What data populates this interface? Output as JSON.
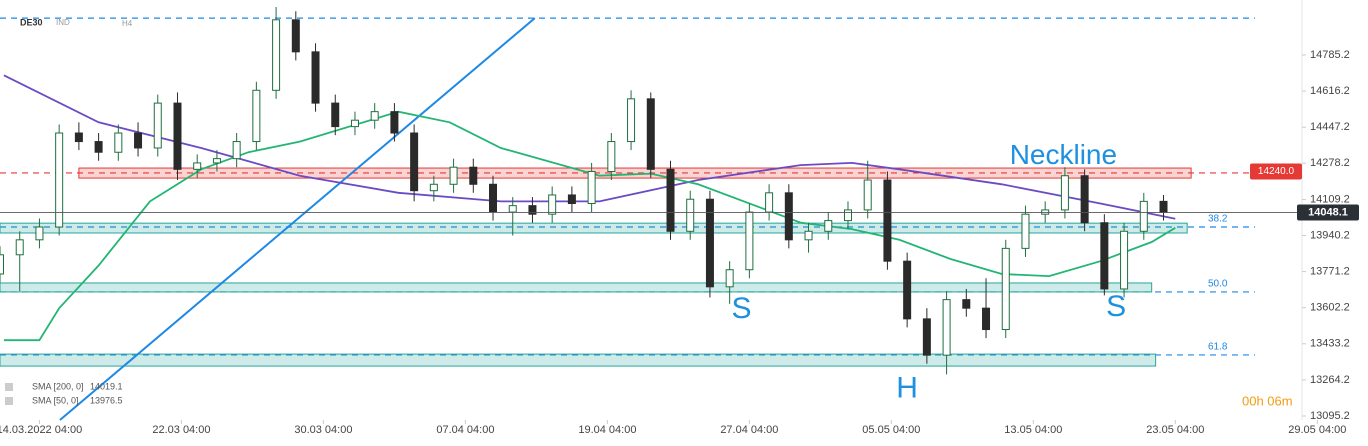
{
  "chart_data": {
    "type": "candlestick",
    "symbol": "DE30",
    "market": "IND",
    "timeframe": "H4",
    "countdown": "00h 06m",
    "xlim": [
      0,
      340
    ],
    "ylim": [
      13076.5,
      15042.7
    ],
    "yticks": [
      13095.2,
      13264.2,
      13433.2,
      13602.2,
      13771.2,
      13940.2,
      14109.2,
      14278.2,
      14447.2,
      14616.2,
      14785.2
    ],
    "xticks": [
      {
        "value": 10,
        "label": "14.03.2022 04:00"
      },
      {
        "value": 46,
        "label": "22.03 04:00"
      },
      {
        "value": 82,
        "label": "30.03 04:00"
      },
      {
        "value": 118,
        "label": "07.04 04:00"
      },
      {
        "value": 154,
        "label": "19.04 04:00"
      },
      {
        "value": 190,
        "label": "27.04 04:00"
      },
      {
        "value": 226,
        "label": "05.05 04:00"
      },
      {
        "value": 262,
        "label": "13.05 04:00"
      },
      {
        "value": 298,
        "label": "23.05 04:00"
      },
      {
        "value": 334,
        "label": "29.05 04:00"
      }
    ],
    "candles": {
      "up_color": "#1f6f3f",
      "down_color": "#2a2a2a",
      "x": [
        0,
        5,
        10,
        15,
        20,
        25,
        30,
        35,
        40,
        45,
        50,
        55,
        60,
        65,
        70,
        75,
        80,
        85,
        90,
        95,
        100,
        105,
        110,
        115,
        120,
        125,
        130,
        135,
        140,
        145,
        150,
        155,
        160,
        165,
        170,
        175,
        180,
        185,
        190,
        195,
        200,
        205,
        210,
        215,
        220,
        225,
        230,
        235,
        240,
        245,
        250,
        255,
        260,
        265,
        270,
        275,
        280,
        285,
        290,
        295
      ],
      "open": [
        13760,
        13850,
        13920,
        13980,
        14420,
        14380,
        14330,
        14420,
        14350,
        14560,
        14250,
        14280,
        14300,
        14380,
        14620,
        14950,
        14800,
        14560,
        14450,
        14480,
        14520,
        14420,
        14150,
        14180,
        14260,
        14180,
        14050,
        14080,
        14040,
        14130,
        14090,
        14240,
        14380,
        14580,
        14250,
        13960,
        14110,
        13700,
        13780,
        14050,
        14140,
        13920,
        13960,
        14010,
        14060,
        14200,
        13820,
        13550,
        13380,
        13640,
        13600,
        13500,
        13880,
        14040,
        14060,
        14220,
        14000,
        13690,
        13960,
        14100
      ],
      "high": [
        13890,
        13960,
        14020,
        14460,
        14470,
        14420,
        14460,
        14470,
        14600,
        14610,
        14320,
        14340,
        14420,
        14660,
        15010,
        14990,
        14840,
        14600,
        14520,
        14560,
        14560,
        14460,
        14220,
        14300,
        14300,
        14220,
        14120,
        14120,
        14170,
        14170,
        14280,
        14420,
        14620,
        14610,
        14290,
        14150,
        14150,
        13820,
        14090,
        14180,
        14180,
        14000,
        14050,
        14100,
        14290,
        14240,
        13860,
        13600,
        13680,
        13690,
        13740,
        13920,
        14080,
        14100,
        14260,
        14250,
        14040,
        14000,
        14140,
        14130
      ],
      "low": [
        13720,
        13680,
        13880,
        13940,
        14340,
        14290,
        14290,
        14310,
        14310,
        14200,
        14210,
        14240,
        14260,
        14340,
        14580,
        14760,
        14520,
        14410,
        14410,
        14440,
        14380,
        14100,
        14100,
        14140,
        14140,
        14010,
        13940,
        14000,
        14000,
        14050,
        14050,
        14200,
        14340,
        14210,
        13920,
        13920,
        13650,
        13620,
        13740,
        14010,
        13880,
        13860,
        13920,
        13970,
        14020,
        13780,
        13510,
        13340,
        13290,
        13560,
        13460,
        13460,
        13840,
        14000,
        14020,
        13960,
        13660,
        13650,
        13920,
        14010
      ],
      "close": [
        13850,
        13920,
        13980,
        14420,
        14380,
        14330,
        14420,
        14350,
        14560,
        14250,
        14280,
        14300,
        14380,
        14620,
        14950,
        14800,
        14560,
        14450,
        14480,
        14520,
        14420,
        14150,
        14180,
        14260,
        14180,
        14050,
        14080,
        14040,
        14130,
        14090,
        14240,
        14380,
        14580,
        14250,
        13960,
        14110,
        13700,
        13780,
        14050,
        14140,
        13920,
        13960,
        14010,
        14060,
        14200,
        13820,
        13550,
        13380,
        13640,
        13600,
        13500,
        13880,
        14040,
        14060,
        14220,
        14000,
        13690,
        13960,
        14100,
        14048.1
      ]
    },
    "series": [
      {
        "name": "SMA [200, 0]",
        "color": "#6a4bc4",
        "x": [
          1,
          25,
          51,
          76,
          101,
          127,
          152,
          177,
          203,
          216,
          228,
          254,
          279,
          298
        ],
        "values": [
          14690,
          14470,
          14350,
          14220,
          14140,
          14100,
          14100,
          14200,
          14270,
          14280,
          14250,
          14180,
          14090,
          14019.1
        ]
      },
      {
        "name": "SMA [50, 0]",
        "color": "#22b573",
        "x": [
          1,
          10,
          15,
          25,
          38,
          51,
          63,
          76,
          101,
          114,
          127,
          152,
          165,
          177,
          203,
          216,
          228,
          241,
          254,
          266,
          279,
          292,
          298
        ],
        "values": [
          13450,
          13450,
          13600,
          13800,
          14100,
          14250,
          14330,
          14380,
          14520,
          14470,
          14350,
          14220,
          14230,
          14180,
          14000,
          13970,
          13920,
          13830,
          13760,
          13750,
          13820,
          13910,
          13976.5
        ]
      }
    ],
    "zones": [
      {
        "low": 14209,
        "high": 14256,
        "x0": 20,
        "x1": 302,
        "color": "#e53935"
      },
      {
        "low": 13952,
        "high": 13998,
        "x0": 0,
        "x1": 301,
        "color": "#26a69a"
      },
      {
        "low": 13676,
        "high": 13718,
        "x0": 0,
        "x1": 292,
        "color": "#26a69a"
      },
      {
        "low": 13329,
        "high": 13385,
        "x0": 0,
        "x1": 293,
        "color": "#26a69a"
      }
    ],
    "levels": [
      {
        "value": 14958,
        "color": "#1e88e5"
      },
      {
        "value": 14233,
        "color": "#e53935"
      },
      {
        "value": 13980,
        "color": "#1e88e5",
        "label": "38.2"
      },
      {
        "value": 13676,
        "color": "#1e88e5",
        "label": "50.0"
      },
      {
        "value": 13381,
        "color": "#1e88e5",
        "label": "61.8"
      }
    ],
    "trendline": {
      "x": [
        15.2,
        135.6
      ],
      "values": [
        13076.5,
        14958
      ],
      "color": "#1e88e5"
    },
    "price_tags": [
      {
        "value": 14240,
        "label": "14240.0",
        "color": "#e53935"
      },
      {
        "value": 14048.1,
        "color": "#2b2f36"
      }
    ],
    "annotations": [
      {
        "text": "Neckline",
        "x": 256,
        "value": 14310
      },
      {
        "text": "S",
        "x": 188,
        "value": 13590
      },
      {
        "text": "S",
        "x": 283,
        "value": 13600
      },
      {
        "text": "H",
        "x": 230,
        "value": 13220
      }
    ]
  }
}
